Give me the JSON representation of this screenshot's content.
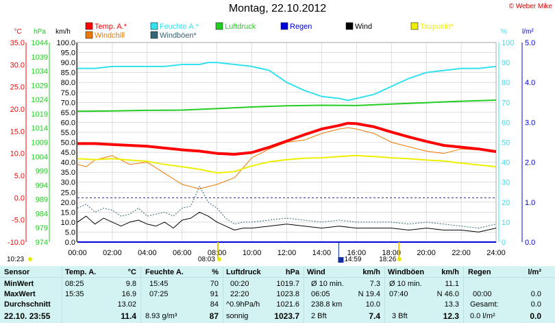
{
  "header": {
    "title": "Montag, 22.10.2012",
    "copyright": "© Weber Mike"
  },
  "legend": [
    {
      "label": "Temp. A.*",
      "color": "#ff0000"
    },
    {
      "label": "Feuchte A.*",
      "color": "#33e0ee"
    },
    {
      "label": "Luftdruck",
      "color": "#22cc22"
    },
    {
      "label": "Regen",
      "color": "#0000dd"
    },
    {
      "label": "Wind",
      "color": "#000000"
    },
    {
      "label": "Taupunkt*",
      "color": "#eeee00"
    },
    {
      "label": "Windchill",
      "color": "#ee7700"
    },
    {
      "label": "Windböen*",
      "color": "#336677"
    }
  ],
  "axes": {
    "temp": {
      "unit": "°C",
      "color": "#ff0000",
      "ticks": [
        "35.0",
        "30.0",
        "25.0",
        "20.0",
        "15.0",
        "10.0",
        "5.0",
        "0.0",
        "-5.0",
        "-10.0"
      ]
    },
    "pressure": {
      "unit": "hPa",
      "color": "#22cc22",
      "ticks": [
        "1044",
        "1039",
        "1034",
        "1029",
        "1024",
        "1019",
        "1014",
        "1009",
        "1004",
        "999",
        "994",
        "989",
        "984",
        "979",
        "974"
      ]
    },
    "wind": {
      "unit": "km/h",
      "color": "#000000",
      "ticks": [
        "100.0",
        "95.0",
        "90.0",
        "85.0",
        "80.0",
        "75.0",
        "70.0",
        "65.0",
        "60.0",
        "55.0",
        "50.0",
        "45.0",
        "40.0",
        "35.0",
        "30.0",
        "25.0",
        "20.0",
        "15.0",
        "10.0",
        "5.0",
        "0.0"
      ]
    },
    "humidity": {
      "unit": "%",
      "color": "#33e0ee",
      "ticks": [
        "100",
        "90",
        "80",
        "70",
        "60",
        "50",
        "40",
        "30",
        "20",
        "10",
        "0"
      ]
    },
    "rain": {
      "unit": "l/m²",
      "color": "#0000dd",
      "ticks": [
        "5.0",
        "4.0",
        "3.0",
        "2.0",
        "1.0",
        "0.0"
      ]
    },
    "time_ticks": [
      "00:00",
      "02:00",
      "04:00",
      "06:00",
      "08:00",
      "10:00",
      "12:00",
      "14:00",
      "16:00",
      "18:00",
      "20:00",
      "22:00",
      "24:00"
    ]
  },
  "markers": {
    "sunrise": "08:03",
    "sunset": "18:26",
    "max_time": "14:59",
    "current_time": "10:23"
  },
  "chart_data": {
    "type": "line",
    "title": "Montag, 22.10.2012",
    "x_unit": "hours",
    "xlim": [
      0,
      24
    ],
    "series": [
      {
        "name": "Temp. A.*",
        "axis": "temp",
        "x": [
          0,
          1,
          2,
          3,
          4,
          5,
          6,
          7,
          8,
          9,
          10,
          11,
          12,
          13,
          14,
          15,
          15.5,
          16,
          17,
          18,
          19,
          20,
          21,
          22,
          23,
          24
        ],
        "values": [
          12.2,
          12.2,
          12.0,
          11.8,
          11.6,
          11.2,
          10.8,
          10.5,
          10.0,
          9.8,
          10.2,
          11.4,
          12.8,
          14.2,
          15.5,
          16.3,
          16.8,
          16.7,
          16.0,
          14.8,
          13.7,
          12.7,
          11.8,
          11.4,
          11.0,
          10.4
        ]
      },
      {
        "name": "Feuchte A.*",
        "axis": "humidity",
        "x": [
          0,
          1,
          2,
          3,
          4,
          5,
          6,
          7,
          7.5,
          8,
          9,
          10,
          11,
          12,
          13,
          14,
          15,
          15.5,
          16,
          17,
          18,
          19,
          20,
          21,
          22,
          23,
          24
        ],
        "values": [
          87,
          87,
          88,
          88,
          88,
          88,
          89,
          89,
          90,
          90,
          89,
          88,
          86,
          80,
          76,
          73,
          72,
          71,
          72,
          74,
          78,
          82,
          85,
          86,
          87,
          87,
          88
        ]
      },
      {
        "name": "Luftdruck",
        "axis": "pressure",
        "x": [
          0,
          2,
          4,
          6,
          8,
          10,
          12,
          14,
          16,
          18,
          20,
          22,
          24
        ],
        "values": [
          1019.9,
          1020.0,
          1020.2,
          1020.3,
          1020.8,
          1021.4,
          1021.8,
          1022.0,
          1021.9,
          1022.4,
          1022.9,
          1023.4,
          1023.8
        ]
      },
      {
        "name": "Taupunkt*",
        "axis": "temp",
        "x": [
          0,
          1,
          2,
          3,
          4,
          5,
          6,
          7,
          8,
          9,
          10,
          11,
          12,
          13,
          14,
          15,
          16,
          17,
          18,
          19,
          20,
          21,
          22,
          23,
          24
        ],
        "values": [
          8.8,
          8.6,
          8.8,
          8.5,
          8.2,
          7.5,
          7.0,
          6.4,
          5.6,
          5.9,
          7.2,
          8.1,
          8.6,
          8.9,
          9.0,
          9.3,
          9.5,
          9.3,
          9.0,
          8.8,
          8.5,
          8.3,
          7.8,
          7.4,
          7.0
        ]
      },
      {
        "name": "Windchill",
        "axis": "temp",
        "x": [
          0,
          0.5,
          1,
          2,
          3,
          4,
          5,
          6,
          7,
          8,
          9,
          10,
          11,
          12,
          13,
          14,
          15,
          15.5,
          16,
          17,
          18,
          19,
          20,
          21,
          22,
          23,
          24
        ],
        "values": [
          7.5,
          7.0,
          8.5,
          9.5,
          7.5,
          8.0,
          5.5,
          3.0,
          2.0,
          3.0,
          4.5,
          9.0,
          11.0,
          12.5,
          13.0,
          14.5,
          15.5,
          15.8,
          15.5,
          14.5,
          12.5,
          11.5,
          10.5,
          10.0,
          11.0,
          10.8,
          10.4
        ]
      },
      {
        "name": "Wind",
        "axis": "wind",
        "x": [
          0,
          0.5,
          1,
          1.5,
          2,
          2.5,
          3,
          3.5,
          4,
          4.5,
          5,
          5.5,
          6,
          6.5,
          7,
          7.5,
          8,
          8.5,
          9,
          9.5,
          10,
          11,
          12,
          13,
          14,
          15,
          16,
          17,
          18,
          19,
          20,
          21,
          22,
          23,
          24
        ],
        "values": [
          10,
          13,
          9,
          12,
          10,
          8,
          10,
          11,
          9,
          8,
          10,
          7,
          11,
          12,
          15,
          13,
          10,
          8,
          6,
          7,
          7,
          8,
          9,
          8,
          7,
          8,
          7,
          7,
          7,
          6,
          7,
          6,
          6,
          5,
          7
        ]
      },
      {
        "name": "Windböen*",
        "axis": "wind",
        "x": [
          0,
          0.5,
          1,
          1.5,
          2,
          2.5,
          3,
          3.5,
          4,
          4.5,
          5,
          5.5,
          6,
          6.5,
          7,
          7.5,
          8,
          8.5,
          9,
          9.5,
          10,
          11,
          12,
          13,
          14,
          15,
          16,
          17,
          18,
          19,
          20,
          21,
          22,
          23,
          24
        ],
        "values": [
          17,
          19,
          15,
          17,
          16,
          13,
          14,
          17,
          13,
          14,
          15,
          13,
          17,
          18,
          28,
          20,
          17,
          12,
          9,
          10,
          10,
          11,
          12,
          11,
          10,
          11,
          10,
          10,
          10,
          9,
          10,
          9,
          8,
          7,
          9
        ]
      },
      {
        "name": "Regen",
        "axis": "rain",
        "x": [
          0,
          24
        ],
        "values": [
          0.0,
          0.0
        ]
      }
    ]
  },
  "table": {
    "headers": [
      "Sensor",
      "Temp. A.",
      "°C",
      "Feuchte A.",
      "%",
      "Luftdruck",
      "hPa",
      "Wind",
      "km/h",
      "Windböen",
      "km/h",
      "Regen",
      "l/m²"
    ],
    "rows": {
      "min": {
        "label": "MinWert",
        "t_time": "08:25",
        "t_val": "9.8",
        "h_time": "15:45",
        "h_val": "70",
        "p_time": "00:20",
        "p_val": "1019.7",
        "w_a": "Ø 10 min.",
        "w_b": "7.3",
        "g_a": "Ø 10 min.",
        "g_b": "11.1",
        "r_a": "",
        "r_b": ""
      },
      "max": {
        "label": "MaxWert",
        "t_time": "15:35",
        "t_val": "16.9",
        "h_time": "07:25",
        "h_val": "91",
        "p_time": "22:20",
        "p_val": "1023.8",
        "w_a": "06:05",
        "w_b": "N 19.4",
        "g_a": "07:40",
        "g_b": "N 46.0",
        "r_a": "00:00",
        "r_b": "0.0"
      },
      "avg": {
        "label": "Durchschnitt",
        "t_time": "",
        "t_val": "13.02",
        "h_time": "",
        "h_val": "84",
        "p_time": "^0.9hPa/h",
        "p_val": "1021.6",
        "w_a": "238.8 km",
        "w_b": "10.0",
        "g_a": "",
        "g_b": "13.3",
        "r_a": "Gesamt:",
        "r_b": "0.0"
      },
      "cur": {
        "label": "22.10. 23:55",
        "t_time": "",
        "t_val": "11.4",
        "h_time": "8.93 g/m³",
        "h_val": "87",
        "p_time": "sonnig",
        "p_val": "1023.7",
        "w_a": "2 Bft",
        "w_b": "7.4",
        "g_a": "3 Bft",
        "g_b": "12.3",
        "r_a": "0.0 l/m²",
        "r_b": "0.0"
      }
    }
  }
}
